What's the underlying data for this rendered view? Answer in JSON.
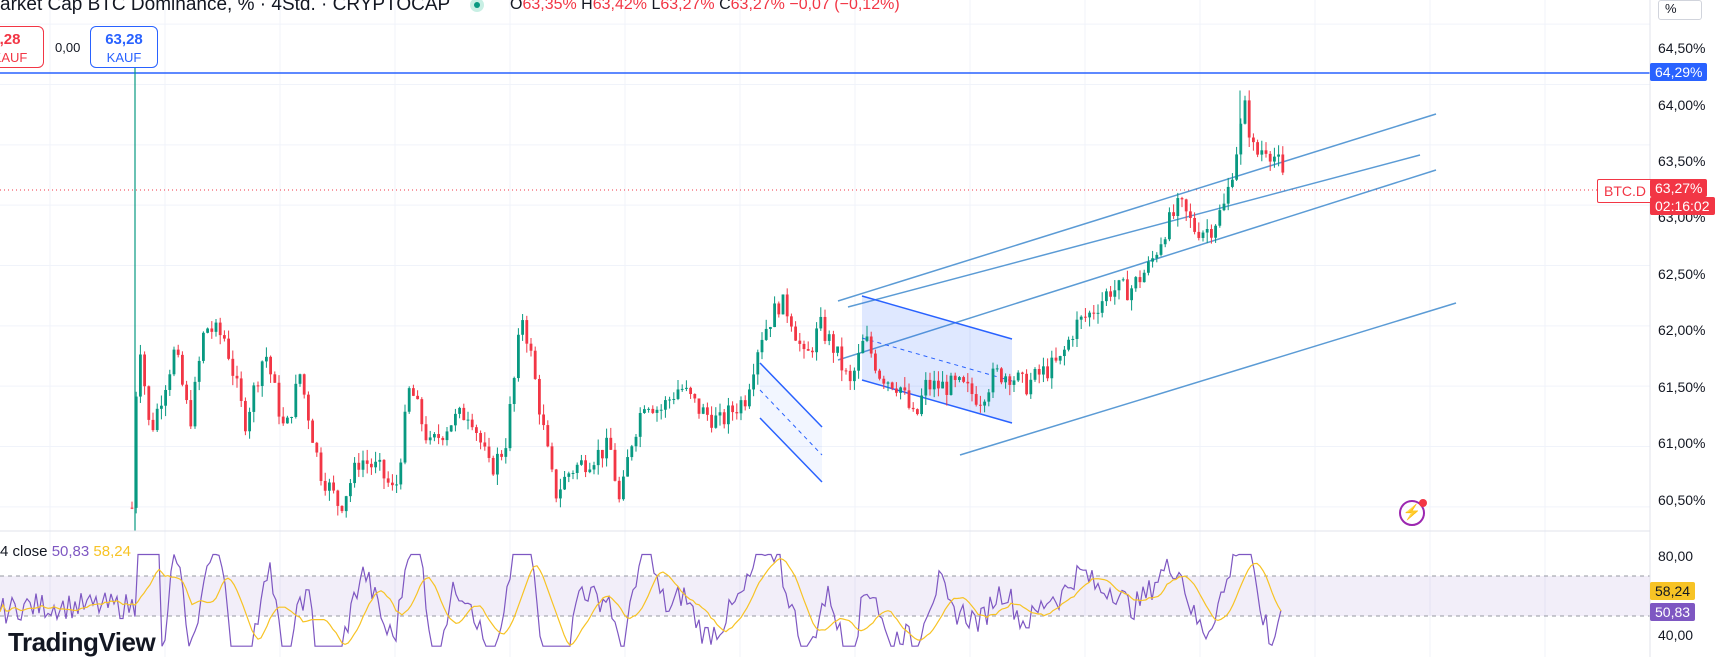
{
  "header": {
    "title": "arket Cap BTC Dominance, % · 4Std. · CRYPTOCAP",
    "ohlc": [
      {
        "label": "O",
        "value": "63,35%"
      },
      {
        "label": "H",
        "value": "63,42%"
      },
      {
        "label": "L",
        "value": "63,27%"
      },
      {
        "label": "C",
        "value": "63,27%"
      },
      {
        "label": "",
        "value": "−0,07 (−0,12%)"
      }
    ]
  },
  "trade": {
    "sell_price": ",28",
    "sell_action": "KAUF",
    "spread": "0,00",
    "buy_price": "63,28",
    "buy_action": "KAUF"
  },
  "price_axis": {
    "unit": "%",
    "labels": [
      "64,50%",
      "64,00%",
      "63,50%",
      "63,00%",
      "62,50%",
      "62,00%",
      "61,50%",
      "61,00%",
      "60,50%"
    ],
    "horizontal_line_label": "64,29%",
    "symbol": "BTC.D",
    "current_price": "63,27%",
    "countdown": "02:16:02"
  },
  "rsi": {
    "legend_prefix": "4 close",
    "rsi_value": "50,83",
    "ma_value": "58,24",
    "axis_labels": [
      "80,00",
      "40,00"
    ],
    "rsi_tag": "50,83",
    "ma_tag": "58,24"
  },
  "brand": "TradingView",
  "colors": {
    "up": "#089981",
    "down": "#f23645",
    "trendline": "#5b9bd5",
    "pattern": "#2962ff",
    "rsi": "#7e57c2",
    "rsi_ma": "#f7c325",
    "hline": "#2962ff"
  },
  "chart_data": {
    "type": "candlestick",
    "symbol": "BTC.D",
    "interval": "4Std.",
    "ylim": [
      60.3,
      64.7
    ],
    "last_close": 63.27,
    "horizontal_line": 64.29,
    "close_path": [
      [
        0,
        60.2
      ],
      [
        135,
        60.5
      ],
      [
        137,
        62.1
      ],
      [
        150,
        61.1
      ],
      [
        175,
        61.8
      ],
      [
        190,
        61.2
      ],
      [
        205,
        62.0
      ],
      [
        225,
        61.9
      ],
      [
        245,
        61.2
      ],
      [
        265,
        61.8
      ],
      [
        285,
        61.1
      ],
      [
        300,
        61.6
      ],
      [
        320,
        60.8
      ],
      [
        340,
        60.5
      ],
      [
        360,
        60.9
      ],
      [
        380,
        60.8
      ],
      [
        395,
        60.6
      ],
      [
        410,
        61.5
      ],
      [
        430,
        61.0
      ],
      [
        450,
        61.2
      ],
      [
        470,
        61.3
      ],
      [
        490,
        60.8
      ],
      [
        505,
        61.0
      ],
      [
        515,
        61.6
      ],
      [
        522,
        62.1
      ],
      [
        530,
        61.8
      ],
      [
        540,
        61.3
      ],
      [
        555,
        60.6
      ],
      [
        570,
        60.8
      ],
      [
        590,
        60.9
      ],
      [
        610,
        61.0
      ],
      [
        620,
        60.5
      ],
      [
        630,
        61.0
      ],
      [
        645,
        61.4
      ],
      [
        660,
        61.3
      ],
      [
        680,
        61.5
      ],
      [
        700,
        61.3
      ],
      [
        720,
        61.2
      ],
      [
        745,
        61.4
      ],
      [
        760,
        61.9
      ],
      [
        780,
        62.2
      ],
      [
        790,
        62.1
      ],
      [
        805,
        61.7
      ],
      [
        820,
        62.0
      ],
      [
        835,
        61.8
      ],
      [
        850,
        61.5
      ],
      [
        865,
        61.9
      ],
      [
        880,
        61.6
      ],
      [
        900,
        61.5
      ],
      [
        915,
        61.2
      ],
      [
        925,
        61.5
      ],
      [
        940,
        61.5
      ],
      [
        960,
        61.5
      ],
      [
        980,
        61.4
      ],
      [
        995,
        61.6
      ],
      [
        1010,
        61.6
      ],
      [
        1025,
        61.5
      ],
      [
        1040,
        61.6
      ],
      [
        1060,
        61.7
      ],
      [
        1075,
        62.0
      ],
      [
        1090,
        62.1
      ],
      [
        1110,
        62.3
      ],
      [
        1130,
        62.3
      ],
      [
        1150,
        62.5
      ],
      [
        1165,
        62.8
      ],
      [
        1180,
        63.0
      ],
      [
        1195,
        62.8
      ],
      [
        1210,
        62.8
      ],
      [
        1225,
        63.0
      ],
      [
        1235,
        63.4
      ],
      [
        1245,
        63.8
      ],
      [
        1255,
        63.4
      ],
      [
        1265,
        63.5
      ],
      [
        1275,
        63.4
      ],
      [
        1283,
        63.27
      ]
    ],
    "rsi_levels": [
      70,
      30
    ],
    "rsi_ylim": [
      30,
      85
    ]
  }
}
